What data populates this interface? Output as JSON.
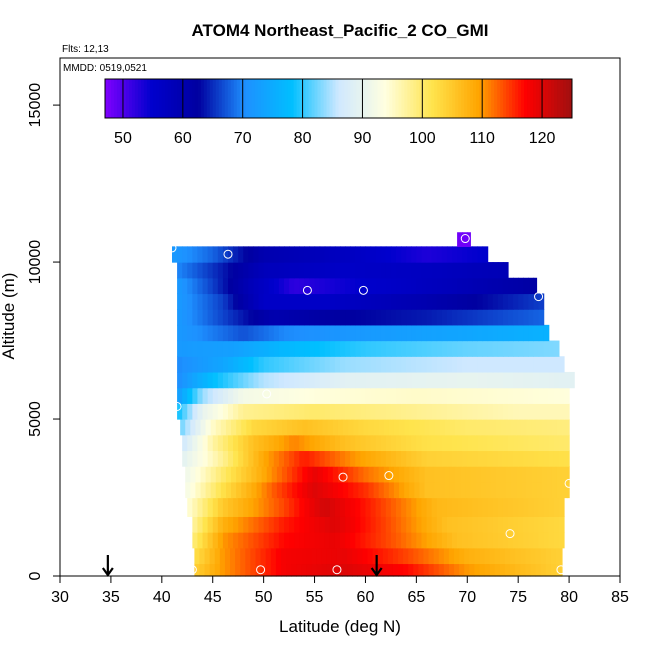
{
  "chart_data": {
    "type": "heatmap",
    "title": "ATOM4 Northeast_Pacific_2 CO_GMI",
    "annotations": [
      "Flts: 12,13",
      "MMDD: 0519,0521"
    ],
    "xlabel": "Latitude (deg N)",
    "ylabel": "Altitude (m)",
    "xlim": [
      30,
      85
    ],
    "ylim": [
      0,
      16500
    ],
    "x_ticks": [
      "30",
      "35",
      "40",
      "45",
      "50",
      "55",
      "60",
      "65",
      "70",
      "75",
      "80",
      "85"
    ],
    "y_ticks": [
      "0",
      "5000",
      "10000",
      "15000"
    ],
    "colorbar": {
      "range": [
        47,
        125
      ],
      "ticks": [
        "50",
        "60",
        "70",
        "80",
        "90",
        "100",
        "110",
        "120"
      ],
      "position": "top, inside plot",
      "colors": [
        "#8000ff",
        "#0000cd",
        "#0000a0",
        "#1e90ff",
        "#00bfff",
        "#cfe8ff",
        "#ffffe0",
        "#ffe44d",
        "#ffa500",
        "#ff0000",
        "#a01010"
      ]
    },
    "arrows": [
      {
        "x": 34.7
      },
      {
        "x": 61.1
      }
    ],
    "rows": [
      {
        "z_lo": 0,
        "z_hi": 400,
        "x_lo": 43.2,
        "x_hi": 79.3,
        "values": [
          [
            43.2,
            104
          ],
          [
            46,
            110
          ],
          [
            52,
            118
          ],
          [
            58,
            120
          ],
          [
            64,
            117
          ],
          [
            70,
            110
          ],
          [
            79.3,
            104
          ]
        ]
      },
      {
        "z_lo": 400,
        "z_hi": 900,
        "x_lo": 43.2,
        "x_hi": 79.3,
        "values": [
          [
            43.2,
            102
          ],
          [
            46,
            110
          ],
          [
            52,
            118
          ],
          [
            58,
            119
          ],
          [
            64,
            114
          ],
          [
            70,
            108
          ],
          [
            79.3,
            104
          ]
        ]
      },
      {
        "z_lo": 900,
        "z_hi": 1400,
        "x_lo": 43.0,
        "x_hi": 79.5,
        "values": [
          [
            43,
            99
          ],
          [
            46,
            110
          ],
          [
            52,
            117
          ],
          [
            57,
            119
          ],
          [
            63,
            113
          ],
          [
            69,
            106
          ],
          [
            79.5,
            103
          ]
        ]
      },
      {
        "z_lo": 1400,
        "z_hi": 1900,
        "x_lo": 43.0,
        "x_hi": 79.5,
        "values": [
          [
            43,
            97
          ],
          [
            46,
            108
          ],
          [
            52,
            116
          ],
          [
            57,
            120
          ],
          [
            62,
            114
          ],
          [
            68,
            106
          ],
          [
            79.5,
            103
          ]
        ]
      },
      {
        "z_lo": 1900,
        "z_hi": 2500,
        "x_lo": 42.5,
        "x_hi": 79.5,
        "values": [
          [
            42.5,
            94
          ],
          [
            46,
            105
          ],
          [
            52,
            114
          ],
          [
            56,
            121
          ],
          [
            61,
            115
          ],
          [
            67,
            107
          ],
          [
            79.5,
            104
          ]
        ]
      },
      {
        "z_lo": 2500,
        "z_hi": 3000,
        "x_lo": 42.3,
        "x_hi": 80.0,
        "values": [
          [
            42.3,
            92
          ],
          [
            46,
            102
          ],
          [
            51,
            113
          ],
          [
            55,
            120
          ],
          [
            60,
            115
          ],
          [
            66,
            106
          ],
          [
            80,
            104
          ]
        ]
      },
      {
        "z_lo": 3000,
        "z_hi": 3500,
        "x_lo": 42.3,
        "x_hi": 80.0,
        "values": [
          [
            42.3,
            91
          ],
          [
            46,
            100
          ],
          [
            51,
            111
          ],
          [
            55,
            119
          ],
          [
            60,
            112
          ],
          [
            66,
            106
          ],
          [
            80,
            104
          ]
        ]
      },
      {
        "z_lo": 3500,
        "z_hi": 4000,
        "x_lo": 42.0,
        "x_hi": 80.0,
        "values": [
          [
            42,
            89
          ],
          [
            46,
            98
          ],
          [
            50,
            109
          ],
          [
            54,
            116
          ],
          [
            59,
            110
          ],
          [
            66,
            104
          ],
          [
            80,
            102
          ]
        ]
      },
      {
        "z_lo": 4000,
        "z_hi": 4500,
        "x_lo": 42.0,
        "x_hi": 80.0,
        "values": [
          [
            42,
            86
          ],
          [
            45,
            97
          ],
          [
            49,
            106
          ],
          [
            53,
            111
          ],
          [
            58,
            106
          ],
          [
            66,
            102
          ],
          [
            80,
            100
          ]
        ]
      },
      {
        "z_lo": 4500,
        "z_hi": 5000,
        "x_lo": 41.8,
        "x_hi": 80.0,
        "values": [
          [
            41.8,
            82
          ],
          [
            45,
            95
          ],
          [
            49,
            103
          ],
          [
            54,
            106
          ],
          [
            60,
            103
          ],
          [
            70,
            100
          ],
          [
            80,
            99
          ]
        ]
      },
      {
        "z_lo": 5000,
        "z_hi": 5500,
        "x_lo": 41.5,
        "x_hi": 80.0,
        "values": [
          [
            41.5,
            78
          ],
          [
            44,
            90
          ],
          [
            48,
            98
          ],
          [
            55,
            100
          ],
          [
            65,
            98
          ],
          [
            75,
            96
          ],
          [
            80,
            96
          ]
        ]
      },
      {
        "z_lo": 5500,
        "z_hi": 6000,
        "x_lo": 41.5,
        "x_hi": 80.0,
        "values": [
          [
            41.5,
            72
          ],
          [
            44,
            84
          ],
          [
            48,
            92
          ],
          [
            55,
            94
          ],
          [
            65,
            95
          ],
          [
            80,
            94
          ]
        ]
      },
      {
        "z_lo": 6000,
        "z_hi": 6500,
        "x_lo": 41.5,
        "x_hi": 80.5,
        "values": [
          [
            41.5,
            70
          ],
          [
            45,
            78
          ],
          [
            50,
            85
          ],
          [
            58,
            89
          ],
          [
            70,
            90
          ],
          [
            80.5,
            89
          ]
        ]
      },
      {
        "z_lo": 6500,
        "z_hi": 7000,
        "x_lo": 41.5,
        "x_hi": 79.5,
        "values": [
          [
            41.5,
            70
          ],
          [
            46,
            74
          ],
          [
            50,
            80
          ],
          [
            58,
            84
          ],
          [
            70,
            86
          ],
          [
            79.5,
            86
          ]
        ]
      },
      {
        "z_lo": 7000,
        "z_hi": 7500,
        "x_lo": 41.5,
        "x_hi": 79.0,
        "values": [
          [
            41.5,
            72
          ],
          [
            47,
            73
          ],
          [
            52,
            77
          ],
          [
            60,
            80
          ],
          [
            70,
            82
          ],
          [
            79,
            83
          ]
        ]
      },
      {
        "z_lo": 7500,
        "z_hi": 8000,
        "x_lo": 41.5,
        "x_hi": 78.0,
        "values": [
          [
            41.5,
            72
          ],
          [
            48,
            67
          ],
          [
            52,
            70
          ],
          [
            60,
            72
          ],
          [
            70,
            74
          ],
          [
            78,
            76
          ]
        ]
      },
      {
        "z_lo": 8000,
        "z_hi": 8500,
        "x_lo": 41.5,
        "x_hi": 77.5,
        "values": [
          [
            41.5,
            72
          ],
          [
            47,
            65
          ],
          [
            51,
            60
          ],
          [
            56,
            62
          ],
          [
            66,
            64
          ],
          [
            77.5,
            68
          ]
        ]
      },
      {
        "z_lo": 8500,
        "z_hi": 9000,
        "x_lo": 41.5,
        "x_hi": 77.5,
        "values": [
          [
            41.5,
            72
          ],
          [
            46,
            66
          ],
          [
            50,
            56
          ],
          [
            56,
            56
          ],
          [
            66,
            60
          ],
          [
            77.5,
            66
          ]
        ]
      },
      {
        "z_lo": 9000,
        "z_hi": 9500,
        "x_lo": 41.5,
        "x_hi": 76.8,
        "values": [
          [
            41.5,
            72
          ],
          [
            45,
            66
          ],
          [
            49,
            58
          ],
          [
            53,
            52
          ],
          [
            60,
            55
          ],
          [
            68,
            58
          ],
          [
            76.8,
            62
          ]
        ]
      },
      {
        "z_lo": 9500,
        "z_hi": 10000,
        "x_lo": 41.5,
        "x_hi": 74.0,
        "values": [
          [
            41.5,
            70
          ],
          [
            46,
            64
          ],
          [
            50,
            58
          ],
          [
            58,
            56
          ],
          [
            66,
            57
          ],
          [
            74,
            59
          ]
        ]
      },
      {
        "z_lo": 10000,
        "z_hi": 10500,
        "x_lo": 41.0,
        "x_hi": 72.0,
        "values": [
          [
            41,
            72
          ],
          [
            45,
            68
          ],
          [
            50,
            60
          ],
          [
            58,
            57
          ],
          [
            66,
            53
          ],
          [
            72,
            55
          ]
        ]
      },
      {
        "z_lo": 10500,
        "z_hi": 10950,
        "x_lo": 69.0,
        "x_hi": 70.3,
        "values": [
          [
            69,
            48
          ],
          [
            70.3,
            48
          ]
        ]
      }
    ],
    "observations": [
      {
        "lat": 41.0,
        "alt": 10450
      },
      {
        "lat": 46.5,
        "alt": 10250
      },
      {
        "lat": 54.3,
        "alt": 9100
      },
      {
        "lat": 59.8,
        "alt": 9100
      },
      {
        "lat": 69.8,
        "alt": 10750
      },
      {
        "lat": 77.0,
        "alt": 8900
      },
      {
        "lat": 41.5,
        "alt": 5400
      },
      {
        "lat": 50.3,
        "alt": 5800
      },
      {
        "lat": 57.8,
        "alt": 3150
      },
      {
        "lat": 62.3,
        "alt": 3200
      },
      {
        "lat": 80.0,
        "alt": 2950
      },
      {
        "lat": 74.2,
        "alt": 1350
      },
      {
        "lat": 43.0,
        "alt": 200
      },
      {
        "lat": 49.7,
        "alt": 200
      },
      {
        "lat": 57.2,
        "alt": 200
      },
      {
        "lat": 79.2,
        "alt": 200
      }
    ]
  }
}
